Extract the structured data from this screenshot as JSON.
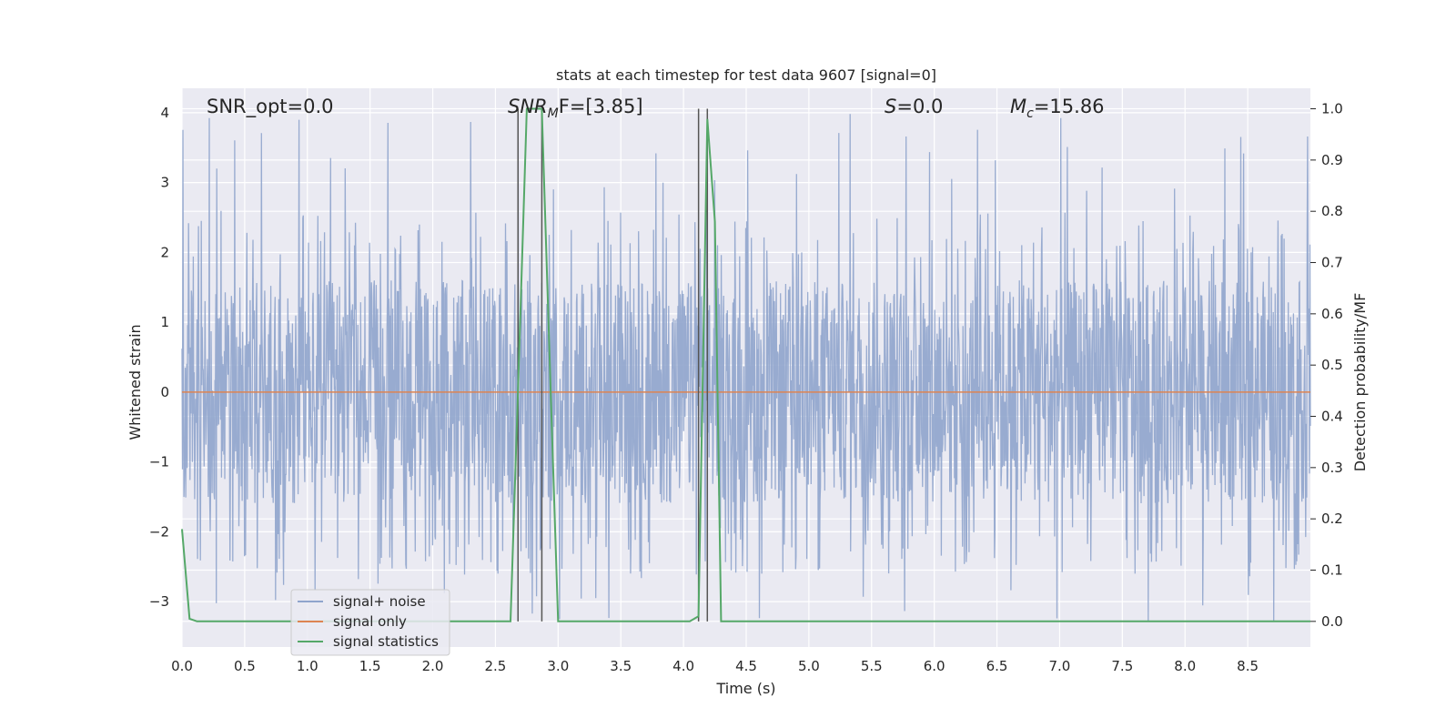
{
  "chart_data": {
    "type": "line",
    "title": "stats at each timestep for test data 9607 [signal=0]",
    "xlabel": "Time (s)",
    "ylabel_left": "Whitened strain",
    "ylabel_right": "Detection probability/MF",
    "xlim": [
      0.0,
      9.0
    ],
    "ylim_left": [
      -3.65,
      4.35
    ],
    "ylim_right": [
      -0.05,
      1.04
    ],
    "x_ticks": [
      "0.0",
      "0.5",
      "1.0",
      "1.5",
      "2.0",
      "2.5",
      "3.0",
      "3.5",
      "4.0",
      "4.5",
      "5.0",
      "5.5",
      "6.0",
      "6.5",
      "7.0",
      "7.5",
      "8.0",
      "8.5"
    ],
    "y_left_ticks": [
      "−3",
      "−2",
      "−1",
      "0",
      "1",
      "2",
      "3",
      "4"
    ],
    "y_right_ticks": [
      "0.0",
      "0.1",
      "0.2",
      "0.3",
      "0.4",
      "0.5",
      "0.6",
      "0.7",
      "0.8",
      "0.9",
      "1.0"
    ],
    "grid": true,
    "legend_placement": "lower-left",
    "annotations": {
      "snr_opt": "SNR_opt=0.0",
      "snr_mf_base": "SNR",
      "snr_mf_sub": "M",
      "snr_mf_rest": "F=[3.85]",
      "s_sym": "S",
      "s_val": "=0.0",
      "mc_base": "M",
      "mc_sub": "c",
      "mc_val": "=15.86"
    },
    "vertical_lines_x": [
      2.68,
      2.87,
      4.12,
      4.19
    ],
    "series": [
      {
        "name": "signal+ noise",
        "color": "#8fa4cc",
        "axis": "left",
        "amplitude_band": [
          -2.0,
          2.0
        ],
        "peak_range": [
          -3.3,
          4.0
        ]
      },
      {
        "name": "signal only",
        "color": "#dd8452",
        "axis": "left",
        "values": [
          [
            0.0,
            0.0
          ],
          [
            9.0,
            0.0
          ]
        ]
      },
      {
        "name": "signal statistics",
        "color": "#55a868",
        "axis": "right",
        "values": [
          [
            0.0,
            0.18
          ],
          [
            0.06,
            0.005
          ],
          [
            0.12,
            0.0
          ],
          [
            2.62,
            0.0
          ],
          [
            2.68,
            0.45
          ],
          [
            2.75,
            1.0
          ],
          [
            2.87,
            1.0
          ],
          [
            2.94,
            0.45
          ],
          [
            3.0,
            0.0
          ],
          [
            4.05,
            0.0
          ],
          [
            4.12,
            0.01
          ],
          [
            4.19,
            0.98
          ],
          [
            4.25,
            0.78
          ],
          [
            4.3,
            0.0
          ],
          [
            9.0,
            0.0
          ]
        ]
      }
    ],
    "colors": {
      "plot_bg": "#eaeaf2",
      "grid": "#ffffff",
      "vline": "#555555"
    }
  }
}
